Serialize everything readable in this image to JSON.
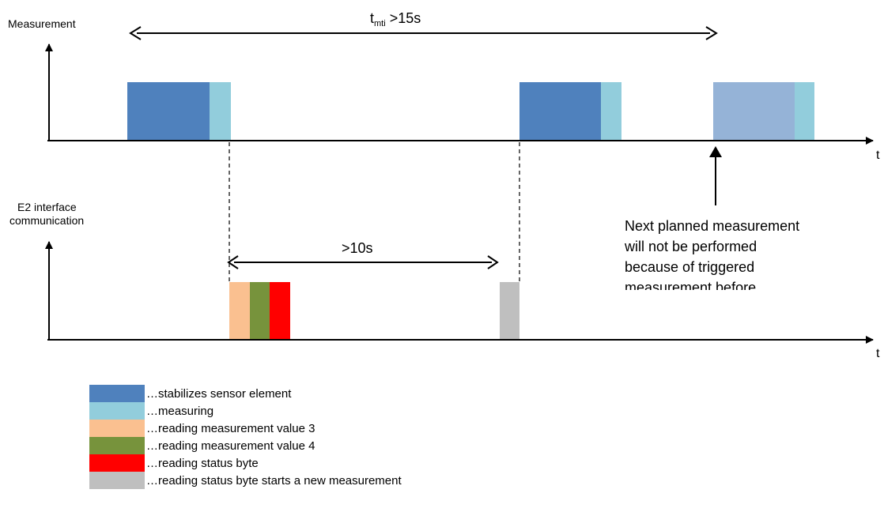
{
  "labels": {
    "measurement_axis": "Measurement",
    "interface_axis_line1": "E2 interface",
    "interface_axis_line2": "communication",
    "t_axis_top": "t",
    "t_axis_bottom": "t",
    "tmti_main": "t",
    "tmti_sub": "mti",
    "tmti_rest": " >15s",
    "interval_10s": ">10s",
    "note_lines": [
      "Next planned measurement",
      "will not be performed",
      "because of triggered",
      "measurement before"
    ]
  },
  "colors": {
    "stabilizes": "#4f81bd",
    "stabilizes_light": "#95b3d7",
    "measuring": "#92cddc",
    "reading_value_3": "#fac090",
    "reading_value_4": "#77933c",
    "reading_status": "#ff0000",
    "reading_status_new": "#bfbfbf"
  },
  "legend": [
    {
      "color": "#4f81bd",
      "text": "…stabilizes sensor element"
    },
    {
      "color": "#92cddc",
      "text": "…measuring"
    },
    {
      "color": "#fac090",
      "text": "…reading measurement value 3"
    },
    {
      "color": "#77933c",
      "text": "…reading measurement value 4"
    },
    {
      "color": "#ff0000",
      "text": "…reading status byte"
    },
    {
      "color": "#bfbfbf",
      "text": "…reading status byte starts a new measurement"
    }
  ]
}
